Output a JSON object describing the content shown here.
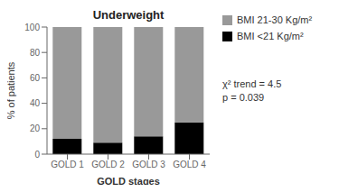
{
  "chart_data": {
    "type": "bar",
    "stacked": true,
    "title": "Underweight",
    "x_label": "GOLD stages",
    "y_label": "% of patients",
    "categories": [
      "GOLD 1",
      "GOLD 2",
      "GOLD 3",
      "GOLD 4"
    ],
    "series": [
      {
        "name": "BMI <21 Kg/m²",
        "color": "#000000",
        "values": [
          12,
          9,
          14,
          25
        ]
      },
      {
        "name": "BMI 21-30 Kg/m²",
        "color": "#999999",
        "values": [
          88,
          91,
          86,
          75
        ]
      }
    ],
    "ylim": [
      0,
      100
    ],
    "yticks": [
      0,
      20,
      40,
      60,
      80,
      100
    ],
    "grid": false,
    "legend": "right",
    "annotation": "χ² trend = 4.5\np = 0.039"
  }
}
